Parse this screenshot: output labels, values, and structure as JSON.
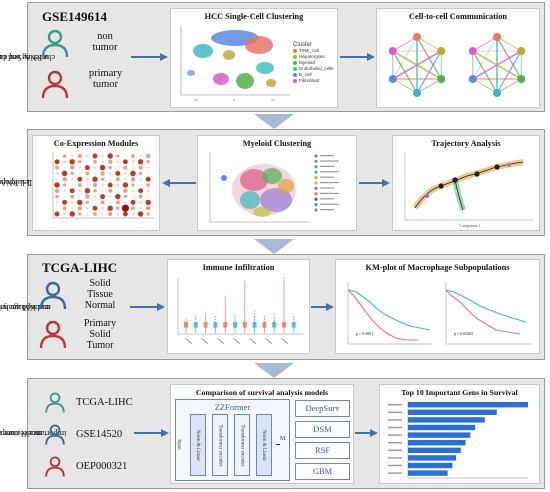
{
  "side_labels": {
    "row1": [
      "clustering and cellchat for HCC",
      "scRNA-Seq data"
    ],
    "row2": [
      "Single-Cell RNA-Seq analysis of",
      "myeloid cell subpopulations"
    ],
    "row3": [
      "macrophage subset inference",
      "and KM analysis"
    ],
    "row4": [
      "model comparisons and",
      "importance feature ranking"
    ]
  },
  "row1": {
    "dataset": "GSE149614",
    "group1": [
      "non",
      "tumor"
    ],
    "group2": [
      "primary",
      "tumor"
    ],
    "panel_clustering": {
      "title": "HCC Single-Cell Clustering",
      "legend_title": "Cluster",
      "legend_items": [
        "T/NK_cell",
        "Hepatocytes",
        "Myeloid",
        "Endothelial_cells",
        "B_cell",
        "Fibroblast"
      ],
      "legend_colors": [
        "#e8766b",
        "#c0a83a",
        "#55b04e",
        "#3fb8c0",
        "#5b8be0",
        "#d160c8"
      ],
      "x_ticks": [
        "-10",
        "0",
        "10"
      ]
    },
    "panel_communication": {
      "title": "Cell-to-cell Communication"
    }
  },
  "row2": {
    "panel_coexp": {
      "title": "Co-Expression Modules"
    },
    "panel_myeloid": {
      "title": "Myeloid Clustering"
    },
    "panel_trajectory": {
      "title": "Trajectory Analysis",
      "x_axis": "Component 1"
    }
  },
  "row3": {
    "dataset": "TCGA-LIHC",
    "group1": [
      "Solid",
      "Tissue",
      "Normal"
    ],
    "group2": [
      "Primary",
      "Solid",
      "Tumor"
    ],
    "panel_immune": {
      "title": "Immune Infiltration"
    },
    "panel_km": {
      "title": "KM-plot of Macrophage Subpopulations",
      "p1": "p < 0.0001",
      "p2": "p = 0.00465"
    }
  },
  "row4": {
    "datasets": [
      "TCGA-LIHC",
      "GSE14520",
      "OEP000321"
    ],
    "panel_models": {
      "title": "Comparison of survival analysis models",
      "zzformer": "ZZFormer",
      "input": "Input",
      "blocks": [
        "Norm & Linear",
        "Transformer encoder",
        "Transformer encoder",
        "Norm & Linear"
      ],
      "output": "M",
      "models": [
        "DeepSurv",
        "DSM",
        "RSF",
        "GBM"
      ]
    },
    "panel_genes": {
      "title": "Top 10 Important Gens in Survival",
      "importance": [
        1.0,
        0.74,
        0.64,
        0.56,
        0.52,
        0.48,
        0.44,
        0.4,
        0.37,
        0.33
      ]
    }
  },
  "colors": {
    "person_normal": "#3a9a8a",
    "person_tumor": "#b43a3a",
    "arrow": "#4a6fa5",
    "bar": "#2d6fd0",
    "bg": "#e6e6e6"
  }
}
